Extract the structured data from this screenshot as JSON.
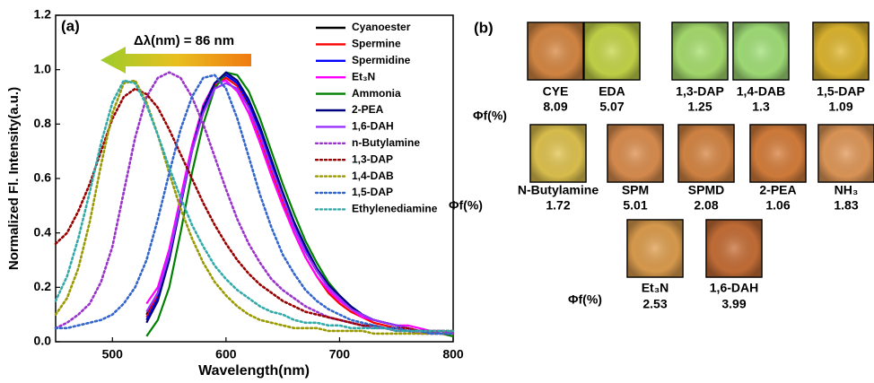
{
  "chart_data": {
    "type": "line",
    "panel_label": "(a)",
    "x_label": "Wavelength(nm)",
    "y_label": "Normalized Fl. Intensity(a.u.)",
    "annotation": "Δλ(nm) = 86 nm",
    "xlim": [
      450,
      800
    ],
    "xticks": [
      500,
      600,
      700,
      800
    ],
    "ylim": [
      0,
      1.2
    ],
    "yticks": [
      {
        "value": 0,
        "label": "0.0"
      },
      0.2,
      0.4,
      0.6,
      0.8,
      {
        "value": 1,
        "label": "1.0"
      },
      1.2
    ],
    "legend": "upper right",
    "x": [
      450,
      460,
      470,
      480,
      490,
      500,
      510,
      520,
      530,
      540,
      550,
      560,
      570,
      580,
      590,
      600,
      610,
      620,
      630,
      640,
      650,
      660,
      670,
      680,
      690,
      700,
      710,
      720,
      730,
      740,
      750,
      760,
      770,
      780,
      790,
      800
    ],
    "series": [
      {
        "name": "Cyanoester",
        "color": "#000000",
        "style": "solid",
        "values": [
          null,
          null,
          null,
          null,
          null,
          null,
          null,
          null,
          0.1,
          0.18,
          0.33,
          0.52,
          0.71,
          0.86,
          0.95,
          0.98,
          0.95,
          0.87,
          0.77,
          0.65,
          0.53,
          0.42,
          0.33,
          0.26,
          0.2,
          0.16,
          0.13,
          0.1,
          0.08,
          0.07,
          0.06,
          0.05,
          0.04,
          0.04,
          0.03,
          0.03
        ]
      },
      {
        "name": "Spermine",
        "color": "#ff0000",
        "style": "solid",
        "values": [
          null,
          null,
          null,
          null,
          null,
          null,
          null,
          null,
          0.09,
          0.17,
          0.32,
          0.51,
          0.7,
          0.85,
          0.94,
          0.97,
          0.94,
          0.86,
          0.75,
          0.63,
          0.51,
          0.4,
          0.31,
          0.24,
          0.18,
          0.14,
          0.11,
          0.09,
          0.07,
          0.06,
          0.05,
          0.04,
          0.04,
          0.03,
          0.03,
          0.02
        ]
      },
      {
        "name": "Spermidine",
        "color": "#0000ff",
        "style": "solid",
        "values": [
          null,
          null,
          null,
          null,
          null,
          null,
          null,
          null,
          0.08,
          0.16,
          0.31,
          0.5,
          0.7,
          0.85,
          0.95,
          0.98,
          0.95,
          0.88,
          0.78,
          0.66,
          0.54,
          0.43,
          0.34,
          0.27,
          0.21,
          0.16,
          0.13,
          0.1,
          0.08,
          0.07,
          0.06,
          0.05,
          0.04,
          0.04,
          0.03,
          0.03
        ]
      },
      {
        "name": "Et₃N",
        "color": "#ff00ff",
        "style": "solid",
        "values": [
          null,
          null,
          null,
          null,
          null,
          null,
          null,
          null,
          0.14,
          0.2,
          0.34,
          0.53,
          0.72,
          0.87,
          0.95,
          0.96,
          0.92,
          0.84,
          0.73,
          0.61,
          0.5,
          0.4,
          0.31,
          0.24,
          0.19,
          0.15,
          0.12,
          0.09,
          0.08,
          0.07,
          0.06,
          0.06,
          0.05,
          0.04,
          0.04,
          0.03
        ]
      },
      {
        "name": "Ammonia",
        "color": "#008000",
        "style": "solid",
        "values": [
          null,
          null,
          null,
          null,
          null,
          null,
          null,
          null,
          0.02,
          0.08,
          0.2,
          0.4,
          0.62,
          0.8,
          0.93,
          0.99,
          0.98,
          0.92,
          0.82,
          0.7,
          0.58,
          0.47,
          0.37,
          0.29,
          0.22,
          0.17,
          0.13,
          0.1,
          0.08,
          0.07,
          0.06,
          0.05,
          0.04,
          0.03,
          0.03,
          0.02
        ]
      },
      {
        "name": "2-PEA",
        "color": "#000080",
        "style": "solid",
        "values": [
          null,
          null,
          null,
          null,
          null,
          null,
          null,
          null,
          0.07,
          0.15,
          0.3,
          0.5,
          0.7,
          0.86,
          0.95,
          0.99,
          0.96,
          0.89,
          0.79,
          0.67,
          0.55,
          0.44,
          0.35,
          0.27,
          0.21,
          0.17,
          0.13,
          0.1,
          0.08,
          0.07,
          0.06,
          0.05,
          0.04,
          0.04,
          0.03,
          0.03
        ]
      },
      {
        "name": "1,6-DAH",
        "color": "#9933ff",
        "style": "solid",
        "values": [
          null,
          null,
          null,
          null,
          null,
          null,
          null,
          null,
          0.11,
          0.18,
          0.32,
          0.51,
          0.7,
          0.84,
          0.93,
          0.95,
          0.93,
          0.86,
          0.76,
          0.64,
          0.53,
          0.42,
          0.33,
          0.26,
          0.2,
          0.16,
          0.12,
          0.1,
          0.08,
          0.07,
          0.06,
          0.05,
          0.04,
          0.04,
          0.03,
          0.03
        ]
      },
      {
        "name": "n-Butylamine",
        "color": "#9933cc",
        "style": "dotted",
        "values": [
          0.05,
          0.07,
          0.1,
          0.14,
          0.22,
          0.35,
          0.55,
          0.75,
          0.9,
          0.97,
          0.99,
          0.97,
          0.9,
          0.8,
          0.68,
          0.56,
          0.45,
          0.36,
          0.29,
          0.23,
          0.19,
          0.16,
          0.13,
          0.11,
          0.09,
          0.08,
          0.07,
          0.06,
          0.05,
          0.05,
          0.04,
          0.04,
          0.03,
          0.03,
          0.03,
          0.03
        ]
      },
      {
        "name": "1,3-DAP",
        "color": "#990000",
        "style": "dotted",
        "values": [
          0.36,
          0.4,
          0.48,
          0.58,
          0.7,
          0.82,
          0.9,
          0.93,
          0.91,
          0.86,
          0.78,
          0.69,
          0.6,
          0.51,
          0.43,
          0.36,
          0.3,
          0.25,
          0.21,
          0.18,
          0.15,
          0.13,
          0.11,
          0.1,
          0.09,
          0.08,
          0.07,
          0.06,
          0.06,
          0.05,
          0.05,
          0.05,
          0.04,
          0.04,
          0.04,
          0.04
        ]
      },
      {
        "name": "1,4-DAB",
        "color": "#999900",
        "style": "dotted",
        "values": [
          0.1,
          0.16,
          0.27,
          0.44,
          0.65,
          0.84,
          0.95,
          0.96,
          0.88,
          0.76,
          0.62,
          0.49,
          0.38,
          0.29,
          0.22,
          0.17,
          0.13,
          0.1,
          0.08,
          0.07,
          0.06,
          0.05,
          0.05,
          0.05,
          0.04,
          0.04,
          0.04,
          0.04,
          0.03,
          0.03,
          0.03,
          0.03,
          0.03,
          0.03,
          0.03,
          0.03
        ]
      },
      {
        "name": "1,5-DAP",
        "color": "#3366cc",
        "style": "dotted",
        "values": [
          0.05,
          0.05,
          0.06,
          0.07,
          0.08,
          0.1,
          0.14,
          0.2,
          0.3,
          0.45,
          0.62,
          0.78,
          0.9,
          0.97,
          0.98,
          0.93,
          0.82,
          0.68,
          0.54,
          0.42,
          0.32,
          0.25,
          0.19,
          0.15,
          0.12,
          0.1,
          0.08,
          0.07,
          0.06,
          0.05,
          0.05,
          0.04,
          0.04,
          0.03,
          0.03,
          0.03
        ]
      },
      {
        "name": "Ethylenediamine",
        "color": "#33aaaa",
        "style": "dotted",
        "values": [
          0.15,
          0.24,
          0.38,
          0.55,
          0.73,
          0.88,
          0.96,
          0.95,
          0.87,
          0.76,
          0.64,
          0.53,
          0.43,
          0.35,
          0.28,
          0.23,
          0.19,
          0.16,
          0.13,
          0.11,
          0.1,
          0.08,
          0.07,
          0.07,
          0.06,
          0.06,
          0.05,
          0.05,
          0.05,
          0.05,
          0.04,
          0.04,
          0.04,
          0.04,
          0.04,
          0.04
        ]
      }
    ]
  },
  "panel_b": {
    "label": "(b)",
    "rows": [
      {
        "yield_label": "Φf(%)",
        "items": [
          {
            "name": "CYE",
            "value": "8.09",
            "color": "#d98a45"
          },
          {
            "name": "EDA",
            "value": "5.07",
            "color": "#c8d84a"
          },
          {
            "name": "1,3-DAP",
            "value": "1.25",
            "color": "#a9e070"
          },
          {
            "name": "1,4-DAB",
            "value": "1.3",
            "color": "#a4e27a"
          },
          {
            "name": "1,5-DAP",
            "value": "1.09",
            "color": "#e0b830"
          }
        ]
      },
      {
        "yield_label": "Φf(%)",
        "items": [
          {
            "name": "N-Butylamine",
            "value": "1.72",
            "color": "#e2c550"
          },
          {
            "name": "SPM",
            "value": "5.01",
            "color": "#de9050"
          },
          {
            "name": "SPMD",
            "value": "2.08",
            "color": "#d88845"
          },
          {
            "name": "2-PEA",
            "value": "1.06",
            "color": "#d8803d"
          },
          {
            "name": "NH₃",
            "value": "1.83",
            "color": "#e39a5a"
          }
        ]
      },
      {
        "yield_label": "Φf(%)",
        "items": [
          {
            "name": "Et₃N",
            "value": "2.53",
            "color": "#e0a050"
          },
          {
            "name": "1,6-DAH",
            "value": "3.99",
            "color": "#c87038"
          }
        ]
      }
    ]
  }
}
